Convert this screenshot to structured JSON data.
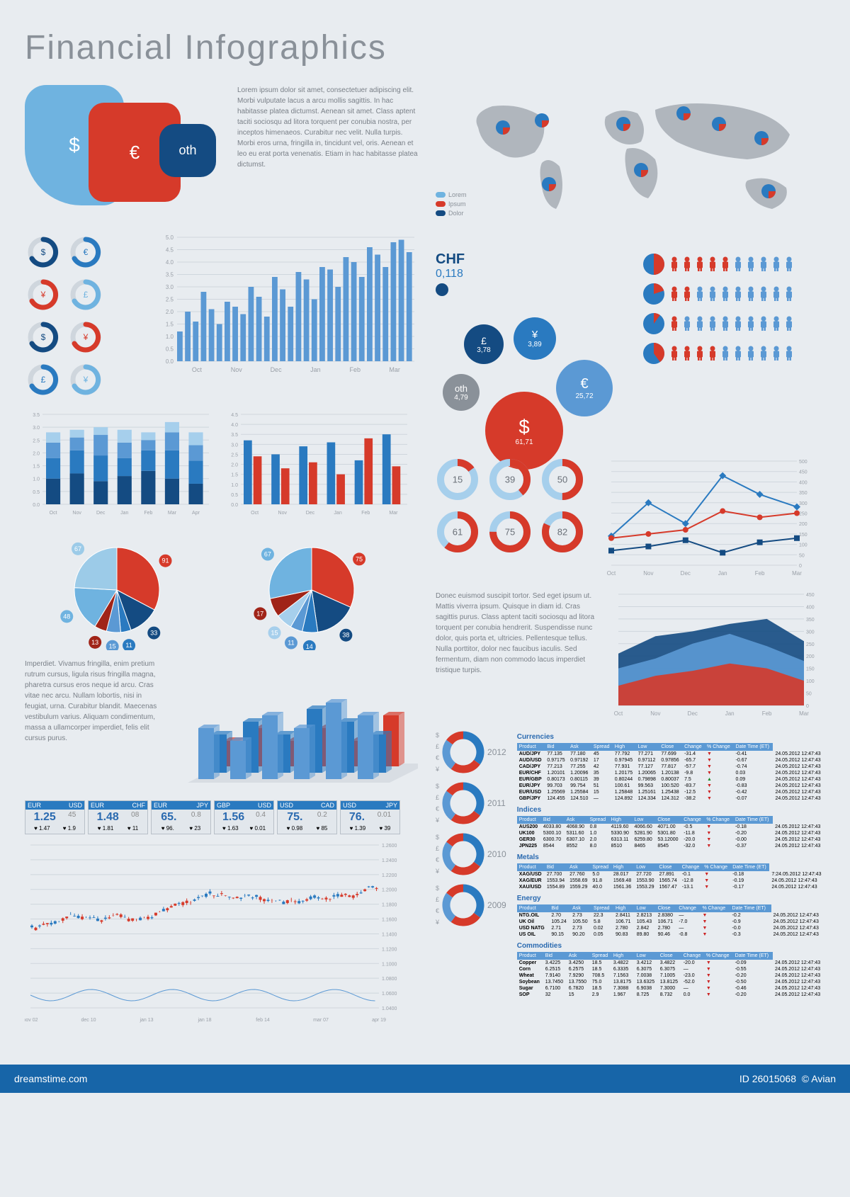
{
  "title": "Financial  Infographics",
  "colors": {
    "blue_light": "#6fb3e0",
    "blue": "#2a7ac0",
    "blue_dark": "#144b82",
    "red": "#d63a2a",
    "red_dark": "#a02418",
    "grid": "#cfd6dd",
    "text": "#8a9199",
    "bg": "#e8ecf0"
  },
  "currency_blobs": {
    "items": [
      {
        "symbol": "$",
        "label": "",
        "color": "#6fb3e0",
        "cls": "blob1"
      },
      {
        "symbol": "€",
        "label": "",
        "color": "#d63a2a",
        "cls": "blob2"
      },
      {
        "symbol": "oth",
        "label": "",
        "color": "#144b82",
        "cls": "blob3"
      }
    ]
  },
  "intro_text": "Lorem ipsum dolor sit amet, consectetuer adipiscing elit. Morbi vulputate lacus a arcu mollis sagittis.\n\nIn hac habitasse platea dictumst. Aenean sit amet. Class aptent taciti sociosqu ad litora torquent per conubia nostra, per inceptos himenaeos. Curabitur nec velit. Nulla turpis. Morbi eros urna, fringilla in, tincidunt vel, oris.\n\nAenean et leo eu erat porta venenatis. Etiam in hac habitasse platea dictumst.",
  "arc_icons": {
    "symbols": [
      "$",
      "€",
      "¥",
      "£",
      "$",
      "¥",
      "£",
      "¥"
    ],
    "colors": [
      "#144b82",
      "#2a7ac0",
      "#d63a2a",
      "#6fb3e0",
      "#144b82",
      "#d63a2a",
      "#2a7ac0",
      "#6fb3e0"
    ]
  },
  "main_bars": {
    "type": "bar",
    "categories": [
      "Oct",
      "Nov",
      "Dec",
      "Jan",
      "Feb",
      "Mar"
    ],
    "ylim": [
      0,
      5
    ],
    "ytick_step": 0.5,
    "values": [
      1.2,
      2.0,
      1.6,
      2.8,
      2.1,
      1.5,
      2.4,
      2.2,
      1.9,
      3.0,
      2.6,
      1.8,
      3.4,
      2.9,
      2.2,
      3.6,
      3.3,
      2.5,
      3.8,
      3.7,
      3.0,
      4.2,
      4.0,
      3.4,
      4.6,
      4.3,
      3.8,
      4.8,
      4.9,
      4.4
    ],
    "bar_color": "#5b99d4",
    "bg": "#e8ecf0",
    "grid": "#cfd6dd"
  },
  "stacked_bars": {
    "type": "stacked_bar",
    "categories": [
      "Oct",
      "Nov",
      "Dec",
      "Jan",
      "Feb",
      "Mar",
      "Apr"
    ],
    "ylim": [
      0,
      3.5
    ],
    "ytick_step": 0.5,
    "segments": [
      [
        1.0,
        0.8,
        0.6,
        0.4
      ],
      [
        1.2,
        0.9,
        0.5,
        0.3
      ],
      [
        0.9,
        1.0,
        0.8,
        0.3
      ],
      [
        1.1,
        0.7,
        0.6,
        0.5
      ],
      [
        1.3,
        0.8,
        0.4,
        0.3
      ],
      [
        1.0,
        1.1,
        0.7,
        0.4
      ],
      [
        0.8,
        0.9,
        0.6,
        0.5
      ]
    ],
    "seg_colors": [
      "#144b82",
      "#2a7ac0",
      "#5b99d4",
      "#a6cfec"
    ]
  },
  "paired_bars": {
    "type": "bar_grouped",
    "categories": [
      "Oct",
      "Nov",
      "Dec",
      "Jan",
      "Feb",
      "Mar"
    ],
    "ylim": [
      0,
      4.5
    ],
    "ytick_step": 0.5,
    "series": [
      {
        "color": "#2a7ac0",
        "values": [
          3.2,
          2.5,
          2.9,
          3.1,
          2.2,
          3.5
        ]
      },
      {
        "color": "#d63a2a",
        "values": [
          2.4,
          1.8,
          2.1,
          1.5,
          3.3,
          1.9
        ]
      }
    ]
  },
  "pies": {
    "pie1": {
      "values": [
        91,
        33,
        11,
        15,
        13,
        48,
        67
      ],
      "colors": [
        "#d63a2a",
        "#144b82",
        "#2a7ac0",
        "#5b99d4",
        "#a02418",
        "#6fb3e0",
        "#9ccbe8"
      ],
      "labels": [
        "91",
        "33",
        "11",
        "15",
        "13",
        "48",
        "67"
      ]
    },
    "pie2": {
      "values": [
        75,
        38,
        14,
        11,
        15,
        17,
        67
      ],
      "colors": [
        "#d63a2a",
        "#144b82",
        "#2a7ac0",
        "#5b99d4",
        "#a6cfec",
        "#a02418",
        "#6fb3e0"
      ],
      "labels": [
        "75",
        "38",
        "14",
        "11",
        "15",
        "17",
        "67"
      ]
    }
  },
  "para2": "Imperdiet. Vivamus fringilla, enim pretium rutrum cursus, ligula risus fringilla magna, pharetra cursus eros neque id arcu.\n\nCras vitae nec arcu. Nullam lobortis, nisi in feugiat, urna. Curabitur blandit. Maecenas vestibulum varius.\n\nAliquam condimentum, massa a ullamcorper imperdiet, felis elit cursus purus.",
  "bar3d": {
    "type": "bar_3d",
    "rows": 3,
    "cols": 6,
    "heights": [
      [
        4,
        3,
        5,
        4,
        6,
        5
      ],
      [
        3,
        4,
        3,
        5,
        4,
        3
      ],
      [
        2,
        3,
        2,
        3,
        2,
        4
      ]
    ],
    "colors": [
      "#5b99d4",
      "#2a7ac0",
      "#d63a2a"
    ]
  },
  "fx_pairs": [
    {
      "pair": "EUR USD",
      "bid": "1.25",
      "ask": "45",
      "b2": "1.47",
      "a2": "1.9"
    },
    {
      "pair": "EUR CHF",
      "bid": "1.48",
      "ask": "08",
      "b2": "1.81",
      "a2": "11"
    },
    {
      "pair": "EUR JPY",
      "bid": "65.",
      "ask": "0.8",
      "b2": "96.",
      "a2": "23"
    },
    {
      "pair": "GBP USD",
      "bid": "1.56",
      "ask": "0.4",
      "b2": "1.63",
      "a2": "0.01"
    },
    {
      "pair": "USD CAD",
      "bid": "75.",
      "ask": "0.2",
      "b2": "0.98",
      "a2": "85"
    },
    {
      "pair": "USD JPY",
      "bid": "76.",
      "ask": "0.01",
      "b2": "1.39",
      "a2": "39"
    }
  ],
  "candlestick": {
    "type": "candlestick",
    "xlabels": [
      "nov 02",
      "dec 10",
      "jan 13",
      "jan 18",
      "feb 14",
      "mar 07",
      "apr 19"
    ],
    "ylim": [
      1.04,
      1.26
    ],
    "ytick_step": 0.02,
    "up_color": "#2a7ac0",
    "down_color": "#d63a2a"
  },
  "chf_badge": {
    "label": "CHF",
    "value": "0,118"
  },
  "map_legend": [
    {
      "label": "Lorem",
      "color": "#6fb3e0"
    },
    {
      "label": "Ipsum",
      "color": "#d63a2a"
    },
    {
      "label": "Dolor",
      "color": "#144b82"
    }
  ],
  "bubbles": [
    {
      "sym": "£",
      "val": "3,78",
      "r": 28,
      "color": "#144b82",
      "x": 40,
      "y": 40
    },
    {
      "sym": "¥",
      "val": "3,89",
      "r": 30,
      "color": "#2a7ac0",
      "x": 110,
      "y": 30
    },
    {
      "sym": "oth",
      "val": "4,79",
      "r": 26,
      "color": "#8a9199",
      "x": 10,
      "y": 110
    },
    {
      "sym": "$",
      "val": "61,71",
      "r": 55,
      "color": "#d63a2a",
      "x": 70,
      "y": 135
    },
    {
      "sym": "€",
      "val": "25,72",
      "r": 40,
      "color": "#5b99d4",
      "x": 170,
      "y": 90
    }
  ],
  "pictogram": {
    "rows": [
      {
        "red": 5,
        "total": 10,
        "pie": [
          0.5,
          0.5
        ]
      },
      {
        "red": 2,
        "total": 10,
        "pie": [
          0.2,
          0.8
        ]
      },
      {
        "red": 1,
        "total": 10,
        "pie": [
          0.1,
          0.9
        ]
      },
      {
        "red": 4,
        "total": 10,
        "pie": [
          0.4,
          0.6
        ]
      }
    ],
    "red": "#d63a2a",
    "blue": "#5b99d4",
    "pie_blue": "#2a7ac0",
    "pie_red": "#d63a2a"
  },
  "donut_row": [
    15,
    39,
    50,
    61,
    75,
    82
  ],
  "donut_fg": "#d63a2a",
  "donut_bg": "#a6cfec",
  "donut_track": "#e8ecf0",
  "line_chart": {
    "type": "line",
    "categories": [
      "Oct",
      "Nov",
      "Dec",
      "Jan",
      "Feb",
      "Mar"
    ],
    "ylim": [
      0,
      500
    ],
    "ytick_step": 50,
    "series": [
      {
        "color": "#2a7ac0",
        "values": [
          140,
          300,
          200,
          430,
          340,
          280
        ],
        "marker": "diamond"
      },
      {
        "color": "#d63a2a",
        "values": [
          130,
          150,
          170,
          260,
          230,
          250
        ],
        "marker": "circle"
      },
      {
        "color": "#144b82",
        "values": [
          70,
          90,
          120,
          60,
          110,
          130
        ],
        "marker": "square"
      }
    ]
  },
  "para3": "Donec euismod suscipit tortor. Sed eget ipsum ut. Mattis viverra ipsum. Quisque in diam id. Cras sagittis purus.\n\nClass aptent taciti sociosqu ad litora torquent per conubia hendrerit. Suspendisse nunc dolor, quis porta et, ultricies.\n\nPellentesque tellus. Nulla porttitor, dolor nec faucibus iaculis. Sed fermentum, diam non commodo lacus imperdiet tristique turpis.",
  "area_chart": {
    "type": "area",
    "categories": [
      "Oct",
      "Nov",
      "Dec",
      "Jan",
      "Feb",
      "Mar"
    ],
    "ylim": [
      0,
      450
    ],
    "ytick_step": 50,
    "series": [
      {
        "color": "#144b82",
        "values": [
          210,
          280,
          300,
          330,
          350,
          260
        ]
      },
      {
        "color": "#5b99d4",
        "values": [
          150,
          190,
          250,
          290,
          240,
          180
        ]
      },
      {
        "color": "#d63a2a",
        "values": [
          80,
          120,
          140,
          170,
          150,
          100
        ]
      }
    ]
  },
  "year_donuts": [
    2012,
    2011,
    2010,
    2009
  ],
  "yd_symbols": [
    "$",
    "£",
    "€",
    "¥"
  ],
  "yd_colors": [
    "#2a7ac0",
    "#d63a2a",
    "#5b99d4",
    "#d63a2a"
  ],
  "tables": [
    {
      "title": "Currencies",
      "cols": [
        "Product",
        "Bid",
        "Ask",
        "Spread",
        "High",
        "Low",
        "Close",
        "Change",
        "% Change",
        "Date Time (ET)"
      ],
      "rows": [
        [
          "AUD/JPY",
          "77.135",
          "77.180",
          "45",
          "77.792",
          "77.271",
          "77.699",
          "-31.4",
          "▼",
          "-0.41",
          "24.05.2012 12:47:43"
        ],
        [
          "AUD/USD",
          "0.97175",
          "0.97192",
          "17",
          "0.97945",
          "0.97112",
          "0.97856",
          "-65.7",
          "▼",
          "-0.67",
          "24.05.2012 12:47:43"
        ],
        [
          "CAD/JPY",
          "77.213",
          "77.255",
          "42",
          "77.931",
          "77.127",
          "77.817",
          "-57.7",
          "▼",
          "-0.74",
          "24.05.2012 12:47:43"
        ],
        [
          "EUR/CHF",
          "1.20101",
          "1.20096",
          "35",
          "1.20175",
          "1.20065",
          "1.20138",
          "-9.8",
          "▼",
          "0.03",
          "24.05.2012 12:47:43"
        ],
        [
          "EUR/GBP",
          "0.80173",
          "0.80115",
          "39",
          "0.80244",
          "0.79898",
          "0.80037",
          "7.5",
          "▲",
          "0.09",
          "24.05.2012 12:47:43"
        ],
        [
          "EUR/JPY",
          "99.703",
          "99.754",
          "51",
          "100.61",
          "99.563",
          "100.520",
          "-83.7",
          "▼",
          "-0.83",
          "24.05.2012 12:47:43"
        ],
        [
          "EUR/USD",
          "1.25569",
          "1.25584",
          "15",
          "1.25848",
          "1.25161",
          "1.25438",
          "-12.5",
          "▼",
          "-0.42",
          "24.05.2012 12:47:43"
        ],
        [
          "GBP/JPY",
          "124.455",
          "124.510",
          "—",
          "124.892",
          "124.334",
          "124.312",
          "-38.2",
          "▼",
          "-0.07",
          "24.05.2012 12:47:43"
        ]
      ]
    },
    {
      "title": "Indices",
      "cols": [
        "Product",
        "Bid",
        "Ask",
        "Spread",
        "High",
        "Low",
        "Close",
        "Change",
        "% Change",
        "Date Time (ET)"
      ],
      "rows": [
        [
          "AUS200",
          "4033.80",
          "4068.90",
          "0.8",
          "4119.60",
          "4066.60",
          "4071.00",
          "-0.5",
          "▼",
          "-0.18",
          "24.05.2012 12:47:43"
        ],
        [
          "UK100",
          "5300.10",
          "5311.60",
          "1.0",
          "5330.90",
          "5281.90",
          "5301.80",
          "-11.8",
          "▼",
          "-0.20",
          "24.05.2012 12:47:43"
        ],
        [
          "GER30",
          "6300.70",
          "6307.10",
          "2.0",
          "6313.11",
          "6259.80",
          "53.12000",
          "-20.0",
          "▼",
          "-0.00",
          "24.05.2012 12:47:43"
        ],
        [
          "JPN225",
          "8544",
          "8552",
          "8.0",
          "8510",
          "8465",
          "8545",
          "-32.0",
          "▼",
          "-0.37",
          "24.05.2012 12:47:43"
        ]
      ]
    },
    {
      "title": "Metals",
      "cols": [
        "Product",
        "Bid",
        "Ask",
        "Spread",
        "High",
        "Low",
        "Close",
        "Change",
        "% Change",
        "Date Time (ET)"
      ],
      "rows": [
        [
          "XAG/USD",
          "27.700",
          "27.760",
          "5.0",
          "28.017",
          "27.720",
          "27.891",
          "-0.1",
          "▼",
          "-0.18",
          "7:24.05.2012 12:47:43"
        ],
        [
          "XAG/EUR",
          "1553.94",
          "1558.69",
          "91.8",
          "1569.48",
          "1553.90",
          "1565.74",
          "-12.8",
          "▼",
          "-0.19",
          "24.05.2012 12:47:43"
        ],
        [
          "XAU/USD",
          "1554.89",
          "1559.29",
          "40.0",
          "1561.36",
          "1553.29",
          "1567.47",
          "-13.1",
          "▼",
          "-0.17",
          "24.05.2012 12:47:43"
        ]
      ]
    },
    {
      "title": "Energy",
      "cols": [
        "Product",
        "Bid",
        "Ask",
        "Spread",
        "High",
        "Low",
        "Close",
        "Change",
        "% Change",
        "Date Time (ET)"
      ],
      "rows": [
        [
          "NTG.OIL",
          "2.70",
          "2.73",
          "22.3",
          "2.8411",
          "2.8213",
          "2.8380",
          "—",
          "▼",
          "-0.2",
          "24.05.2012 12:47:43"
        ],
        [
          "UK Oil",
          "105.24",
          "105.50",
          "5.8",
          "106.71",
          "105.43",
          "106.71",
          "-7.0",
          "▼",
          "-0.9",
          "24.05.2012 12:47:43"
        ],
        [
          "USD NATG",
          "2.71",
          "2.73",
          "0.02",
          "2.780",
          "2.842",
          "2.780",
          "—",
          "▼",
          "-0.0",
          "24.05.2012 12:47:43"
        ],
        [
          "US OIL",
          "90.15",
          "90.20",
          "0.05",
          "90.83",
          "89.80",
          "90.46",
          "-0.8",
          "▼",
          "-0.3",
          "24.05.2012 12:47:43"
        ]
      ]
    },
    {
      "title": "Commodities",
      "cols": [
        "Product",
        "Bid",
        "Ask",
        "Spread",
        "High",
        "Low",
        "Close",
        "Change",
        "% Change",
        "Date Time (ET)"
      ],
      "rows": [
        [
          "Copper",
          "3.4225",
          "3.4250",
          "18.5",
          "3.4822",
          "3.4212",
          "3.4822",
          "-20.0",
          "▼",
          "-0.09",
          "24.05.2012 12:47:43"
        ],
        [
          "Corn",
          "6.2515",
          "6.2575",
          "18.5",
          "6.3335",
          "6.3075",
          "6.3075",
          "—",
          "▼",
          "-0.55",
          "24.05.2012 12:47:43"
        ],
        [
          "Wheat",
          "7.9140",
          "7.9290",
          "708.5",
          "7.1563",
          "7.0038",
          "7.1005",
          "-23.0",
          "▼",
          "-0.20",
          "24.05.2012 12:47:43"
        ],
        [
          "Soybean",
          "13.7450",
          "13.7550",
          "75.0",
          "13.8175",
          "13.6325",
          "13.8125",
          "-52.0",
          "▼",
          "-0.50",
          "24.05.2012 12:47:43"
        ],
        [
          "Sugar",
          "6.7100",
          "6.7820",
          "18.5",
          "7.3088",
          "6.9038",
          "7.3000",
          "—",
          "▼",
          "-0.46",
          "24.05.2012 12:47:43"
        ],
        [
          "SOP",
          "32",
          "15",
          "2.9",
          "1.967",
          "8.725",
          "8.732",
          "0.0",
          "▼",
          "-0.20",
          "24.05.2012 12:47:43"
        ]
      ]
    }
  ],
  "footer": {
    "left": "dreamstime.com",
    "right_id": "ID 26015068",
    "right_author": "© Avian"
  }
}
